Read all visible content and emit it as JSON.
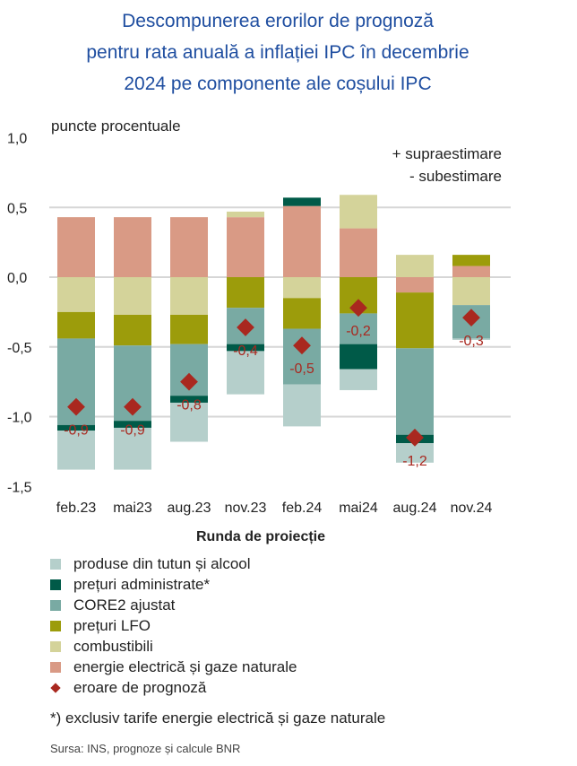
{
  "title_lines": [
    "Descompunerea erorilor de prognoză",
    "pentru rata anuală a inflației IPC în decembrie",
    "2024 pe componente ale coșului IPC"
  ],
  "note": "*) exclusiv tarife energie electrică și gaze naturale",
  "source": "Sursa: INS, prognoze și calcule BNR",
  "chart_data": {
    "type": "bar",
    "stacked": true,
    "ylabel": "puncte procentuale",
    "xlabel": "Runda de proiecție",
    "annotations": [
      "+ supraestimare",
      "- subestimare"
    ],
    "ylim": [
      -1.5,
      1.0
    ],
    "yticks": [
      1.0,
      0.5,
      0.0,
      -0.5,
      -1.0,
      -1.5
    ],
    "ytick_labels": [
      "1,0",
      "0,5",
      "0,0",
      "-0,5",
      "-1,0",
      "-1,5"
    ],
    "grid": true,
    "legend_placement": "bottom",
    "categories": [
      "feb.23",
      "mai23",
      "aug.23",
      "nov.23",
      "feb.24",
      "mai24",
      "aug.24",
      "nov.24"
    ],
    "series": [
      {
        "name": "energie electrică și gaze naturale",
        "color": "#D99A85",
        "values": [
          0.43,
          0.43,
          0.43,
          0.43,
          0.51,
          0.35,
          -0.11,
          0.08
        ]
      },
      {
        "name": "combustibili",
        "color": "#D4D39A",
        "values": [
          -0.25,
          -0.27,
          -0.27,
          0.04,
          -0.15,
          0.24,
          0.16,
          -0.2
        ]
      },
      {
        "name": "prețuri LFO",
        "color": "#9C9C0B",
        "values": [
          -0.19,
          -0.22,
          -0.21,
          -0.22,
          -0.22,
          -0.26,
          -0.4,
          0.08
        ]
      },
      {
        "name": "CORE2 ajustat",
        "color": "#79AAA3",
        "values": [
          -0.62,
          -0.54,
          -0.37,
          -0.26,
          -0.4,
          -0.22,
          -0.62,
          -0.24
        ]
      },
      {
        "name": "prețuri administrate*",
        "color": "#005A48",
        "values": [
          -0.04,
          -0.05,
          -0.05,
          -0.05,
          0.06,
          -0.18,
          -0.06,
          0.0
        ]
      },
      {
        "name": "produse din tutun și alcool",
        "color": "#B5CFCB",
        "values": [
          -0.28,
          -0.3,
          -0.28,
          -0.31,
          -0.3,
          -0.15,
          -0.14,
          -0.01
        ]
      }
    ],
    "error": {
      "name": "eroare de prognoză",
      "color": "#A9281F",
      "values": [
        -0.93,
        -0.93,
        -0.75,
        -0.36,
        -0.49,
        -0.22,
        -1.15,
        -0.29
      ],
      "labels": [
        "-0,9",
        "-0,9",
        "-0,8",
        "-0,4",
        "-0,5",
        "-0,2",
        "-1,2",
        "-0,3"
      ]
    },
    "legend_order": [
      "produse din tutun și alcool",
      "prețuri administrate*",
      "CORE2 ajustat",
      "prețuri LFO",
      "combustibili",
      "energie electrică și gaze naturale",
      "eroare de prognoză"
    ]
  }
}
